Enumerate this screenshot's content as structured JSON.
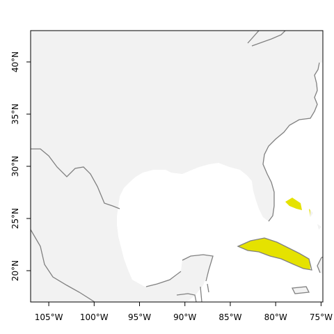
{
  "map": {
    "lon_range": [
      -107,
      -74.8
    ],
    "lat_range": [
      17,
      43
    ],
    "highlight_extent": {
      "lon": [
        -106,
        -76.2
      ],
      "lat": [
        20,
        40
      ]
    },
    "colors": {
      "land": "#f2f2f2",
      "highlight": "#e5e200",
      "border": "#808080",
      "frame": "#000000"
    },
    "x_ticks": [
      {
        "value": -105,
        "label": "105°W"
      },
      {
        "value": -100,
        "label": "100°W"
      },
      {
        "value": -95,
        "label": "95°W"
      },
      {
        "value": -90,
        "label": "90°W"
      },
      {
        "value": -85,
        "label": "85°W"
      },
      {
        "value": -80,
        "label": "80°W"
      },
      {
        "value": -75,
        "label": "75°W"
      }
    ],
    "y_ticks": [
      {
        "value": 20,
        "label": "20°N"
      },
      {
        "value": 25,
        "label": "25°N"
      },
      {
        "value": 30,
        "label": "30°N"
      },
      {
        "value": 35,
        "label": "35°N"
      },
      {
        "value": 40,
        "label": "40°N"
      }
    ]
  }
}
